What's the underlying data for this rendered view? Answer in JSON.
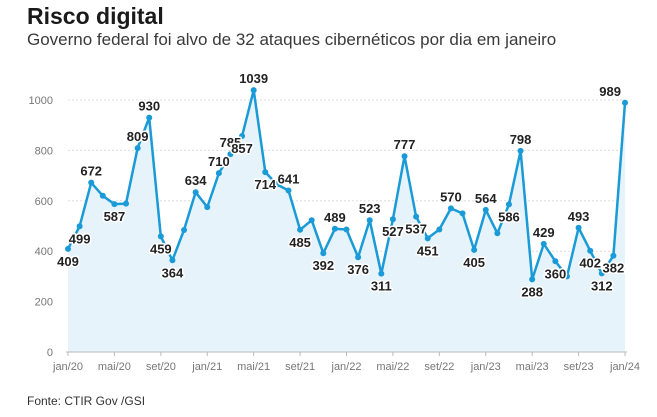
{
  "title": "Risco digital",
  "subtitle": "Governo federal foi alvo de 32 ataques cibernéticos por dia em janeiro",
  "source": "Fonte: CTIR Gov /GSI",
  "chart_data": {
    "type": "area",
    "title": "Risco digital",
    "subtitle": "Governo federal foi alvo de 32 ataques cibernéticos por dia em janeiro",
    "x": [
      "2020-01",
      "2020-02",
      "2020-03",
      "2020-04",
      "2020-05",
      "2020-06",
      "2020-07",
      "2020-08",
      "2020-09",
      "2020-10",
      "2020-11",
      "2020-12",
      "2021-01",
      "2021-02",
      "2021-03",
      "2021-04",
      "2021-05",
      "2021-06",
      "2021-07",
      "2021-08",
      "2021-09",
      "2021-10",
      "2021-11",
      "2021-12",
      "2022-01",
      "2022-02",
      "2022-03",
      "2022-04",
      "2022-05",
      "2022-06",
      "2022-07",
      "2022-08",
      "2022-09",
      "2022-10",
      "2022-11",
      "2022-12",
      "2023-01",
      "2023-02",
      "2023-03",
      "2023-04",
      "2023-05",
      "2023-06",
      "2023-07",
      "2023-08",
      "2023-09",
      "2023-10",
      "2023-11",
      "2023-12",
      "2024-01"
    ],
    "values": [
      409,
      499,
      672,
      620,
      587,
      589,
      809,
      930,
      459,
      364,
      484,
      634,
      575,
      710,
      785,
      857,
      1039,
      714,
      665,
      641,
      485,
      523,
      392,
      489,
      486,
      376,
      523,
      311,
      527,
      777,
      537,
      451,
      486,
      570,
      550,
      405,
      564,
      471,
      586,
      798,
      288,
      429,
      360,
      300,
      493,
      402,
      312,
      382,
      989
    ],
    "data_labels": [
      {
        "x": "2020-01",
        "text": "409"
      },
      {
        "x": "2020-02",
        "text": "499"
      },
      {
        "x": "2020-03",
        "text": "672"
      },
      {
        "x": "2020-05",
        "text": "587"
      },
      {
        "x": "2020-07",
        "text": "809"
      },
      {
        "x": "2020-08",
        "text": "930"
      },
      {
        "x": "2020-09",
        "text": "459"
      },
      {
        "x": "2020-10",
        "text": "364"
      },
      {
        "x": "2020-12",
        "text": "634"
      },
      {
        "x": "2021-02",
        "text": "710"
      },
      {
        "x": "2021-03",
        "text": "785"
      },
      {
        "x": "2021-04",
        "text": "857"
      },
      {
        "x": "2021-05",
        "text": "1039"
      },
      {
        "x": "2021-06",
        "text": "714"
      },
      {
        "x": "2021-08",
        "text": "641"
      },
      {
        "x": "2021-09",
        "text": "485"
      },
      {
        "x": "2021-11",
        "text": "392"
      },
      {
        "x": "2021-12",
        "text": "489"
      },
      {
        "x": "2022-02",
        "text": "376"
      },
      {
        "x": "2022-03",
        "text": "523"
      },
      {
        "x": "2022-04",
        "text": "311"
      },
      {
        "x": "2022-05",
        "text": "527"
      },
      {
        "x": "2022-06",
        "text": "777"
      },
      {
        "x": "2022-07",
        "text": "537"
      },
      {
        "x": "2022-08",
        "text": "451"
      },
      {
        "x": "2022-10",
        "text": "570"
      },
      {
        "x": "2022-12",
        "text": "405"
      },
      {
        "x": "2023-01",
        "text": "564"
      },
      {
        "x": "2023-03",
        "text": "586"
      },
      {
        "x": "2023-04",
        "text": "798"
      },
      {
        "x": "2023-05",
        "text": "288"
      },
      {
        "x": "2023-06",
        "text": "429"
      },
      {
        "x": "2023-07",
        "text": "360"
      },
      {
        "x": "2023-09",
        "text": "493"
      },
      {
        "x": "2023-10",
        "text": "402"
      },
      {
        "x": "2023-11",
        "text": "312"
      },
      {
        "x": "2023-12",
        "text": "382"
      },
      {
        "x": "2024-01",
        "text": "989"
      }
    ],
    "y_ticks": [
      0,
      200,
      400,
      600,
      800,
      1000
    ],
    "ylim": [
      0,
      1000
    ],
    "x_ticks": [
      {
        "x": "2020-01",
        "label": "jan/20"
      },
      {
        "x": "2020-05",
        "label": "mai/20"
      },
      {
        "x": "2020-09",
        "label": "set/20"
      },
      {
        "x": "2021-01",
        "label": "jan/21"
      },
      {
        "x": "2021-05",
        "label": "mai/21"
      },
      {
        "x": "2021-09",
        "label": "set/21"
      },
      {
        "x": "2022-01",
        "label": "jan/22"
      },
      {
        "x": "2022-05",
        "label": "mai/22"
      },
      {
        "x": "2022-09",
        "label": "set/22"
      },
      {
        "x": "2023-01",
        "label": "jan/23"
      },
      {
        "x": "2023-05",
        "label": "mai/23"
      },
      {
        "x": "2023-09",
        "label": "set/23"
      },
      {
        "x": "2024-01",
        "label": "jan/24"
      }
    ],
    "xlabel": "",
    "ylabel": "",
    "grid": true,
    "colors": {
      "line": "#1a9ad6",
      "fill": "#e6f3fa",
      "grid": "#dddddd",
      "axis": "#bbbbbb"
    }
  }
}
